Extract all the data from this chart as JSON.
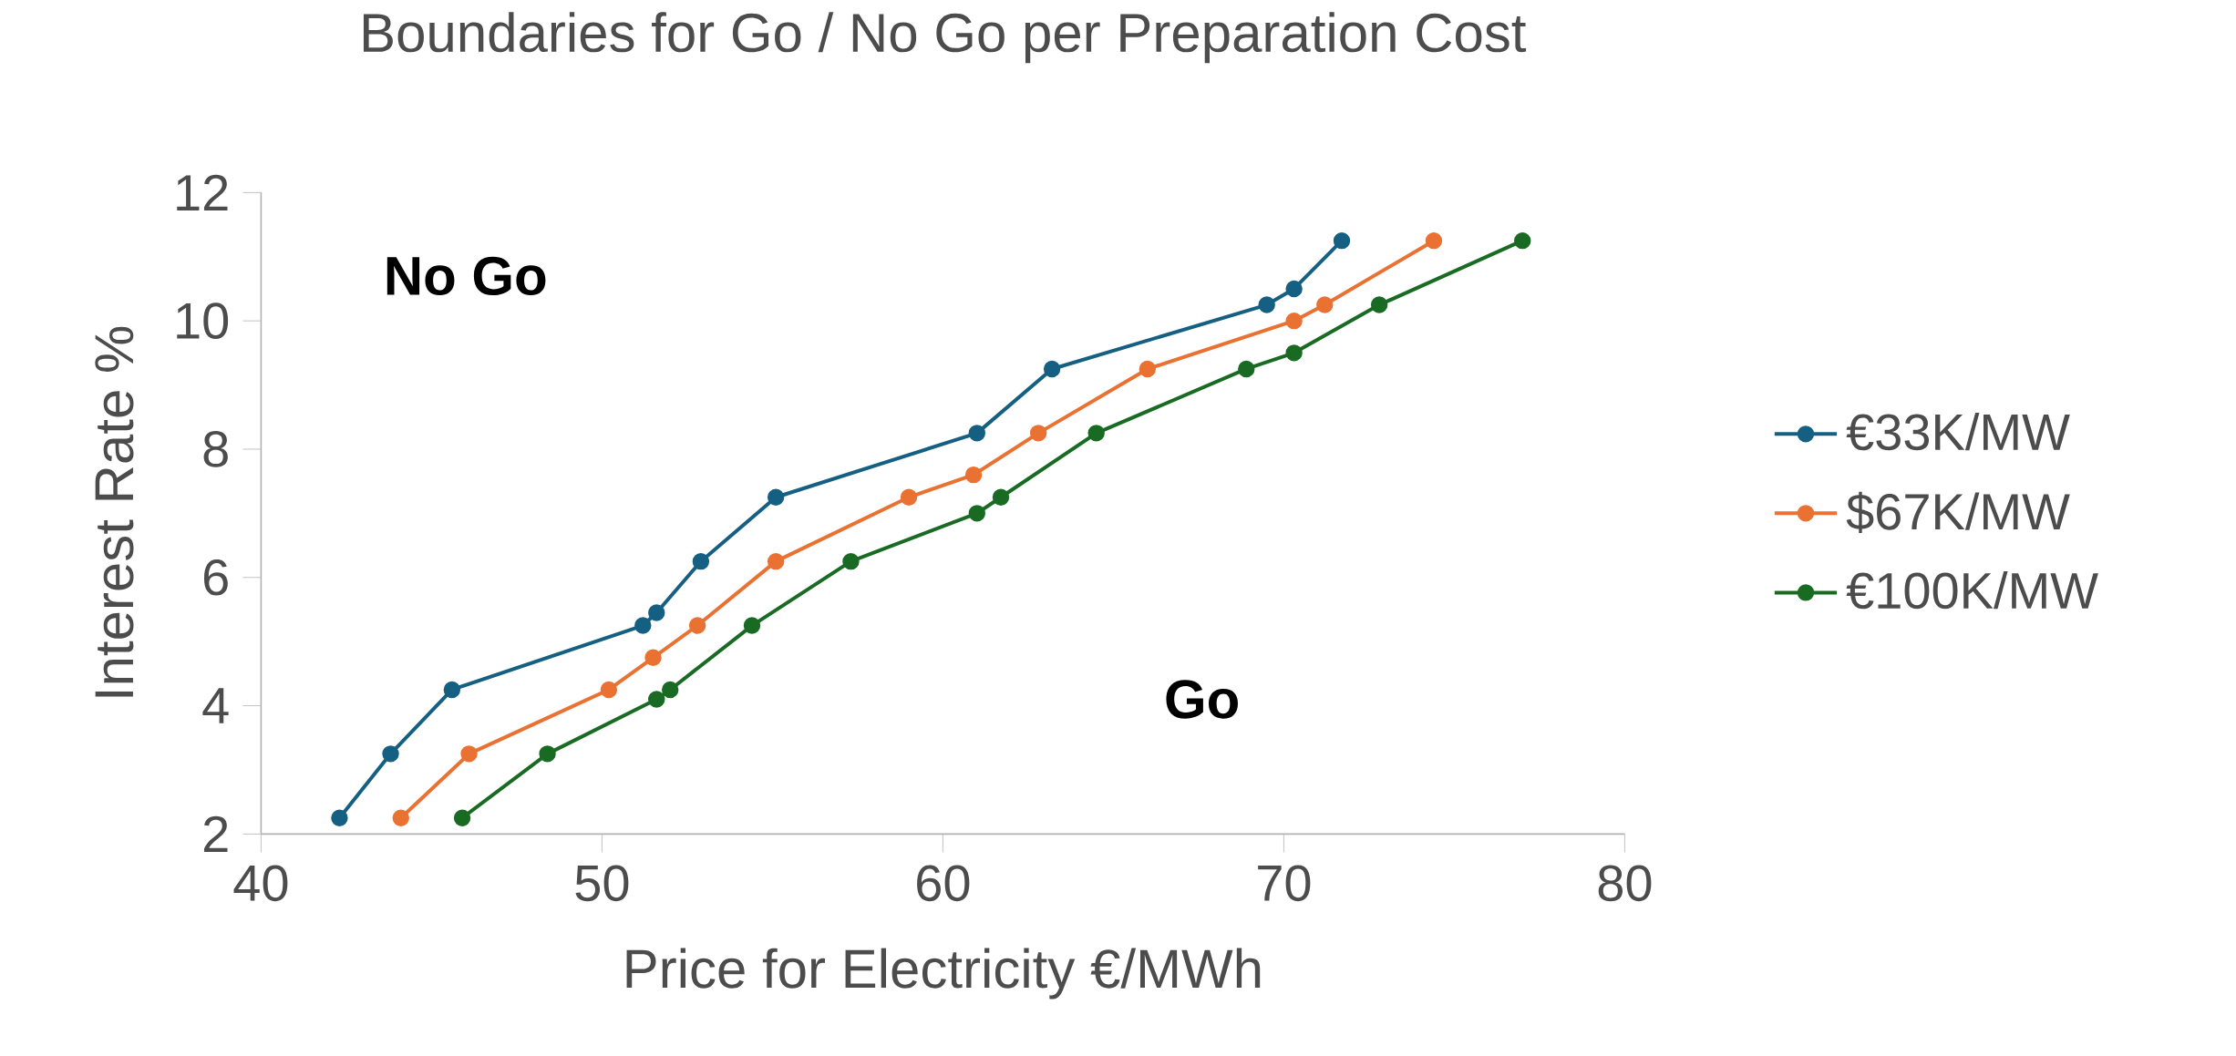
{
  "chart_data": {
    "type": "line",
    "title": "Boundaries for Go / No Go per Preparation Cost",
    "xlabel": "Price for Electricity €/MWh",
    "ylabel": "Interest Rate %",
    "xlim": [
      40,
      80
    ],
    "xticks": [
      40,
      50,
      60,
      70,
      80
    ],
    "ylim": [
      2,
      12
    ],
    "yticks": [
      2,
      4,
      6,
      8,
      10,
      12
    ],
    "grid": false,
    "legend": "right",
    "marker": "circle",
    "line_style": "solid",
    "annotations": [
      "No Go",
      "Go"
    ],
    "series": [
      {
        "name": "€33K/MW",
        "color": "#156082",
        "x": [
          42.3,
          43.8,
          45.6,
          51.2,
          51.6,
          52.9,
          55.1,
          61.0,
          63.2,
          69.5,
          70.3,
          71.7
        ],
        "values": [
          2.25,
          3.25,
          4.25,
          5.25,
          5.45,
          6.25,
          7.25,
          8.25,
          9.25,
          10.25,
          10.5,
          11.25
        ]
      },
      {
        "name": "$67K/MW",
        "color": "#e97132",
        "x": [
          44.1,
          46.1,
          50.2,
          51.5,
          52.8,
          55.1,
          59.0,
          60.9,
          62.8,
          66.0,
          70.3,
          71.2,
          74.4
        ],
        "values": [
          2.25,
          3.25,
          4.25,
          4.75,
          5.25,
          6.25,
          7.25,
          7.6,
          8.25,
          9.25,
          10.0,
          10.25,
          11.25
        ]
      },
      {
        "name": "€100K/MW",
        "color": "#196b24",
        "x": [
          45.9,
          48.4,
          51.6,
          52.0,
          54.4,
          57.3,
          61.0,
          61.7,
          64.5,
          68.9,
          70.3,
          72.8,
          77.0
        ],
        "values": [
          2.25,
          3.25,
          4.1,
          4.25,
          5.25,
          6.25,
          7.0,
          7.25,
          8.25,
          9.25,
          9.5,
          10.25,
          11.25
        ]
      }
    ]
  }
}
